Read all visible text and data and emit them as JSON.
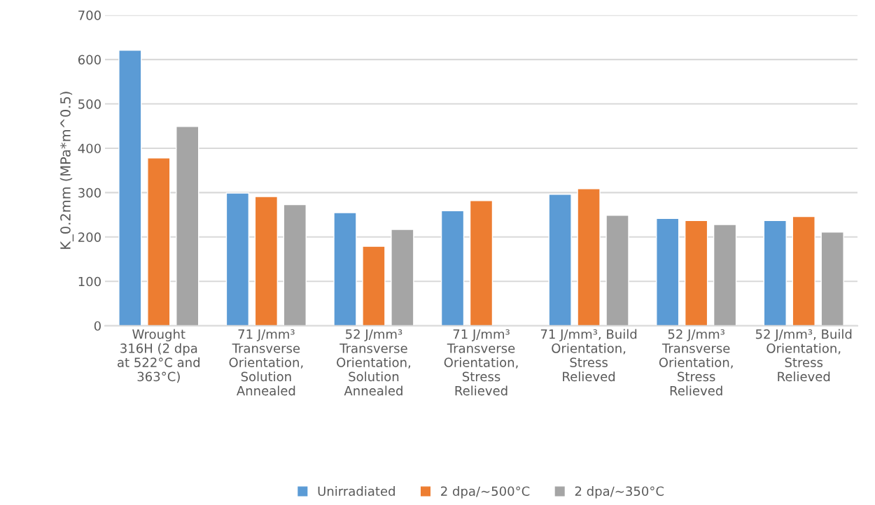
{
  "chart_data": {
    "type": "bar",
    "ylabel": "K_0.2mm (MPa*m^0.5)",
    "categories": [
      "Wrought\n316H (2 dpa\nat 522°C and\n363°C)",
      "71 J/mm³\nTransverse\nOrientation,\nSolution\nAnnealed",
      "52 J/mm³\nTransverse\nOrientation,\nSolution\nAnnealed",
      "71 J/mm³\nTransverse\nOrientation,\nStress\nRelieved",
      "71 J/mm³, Build\nOrientation,\nStress\nRelieved",
      "52 J/mm³\nTransverse\nOrientation,\nStress\nRelieved",
      "52 J/mm³, Build\nOrientation,\nStress\nRelieved"
    ],
    "series": [
      {
        "name": "Unirradiated",
        "color": "#5b9bd5",
        "values": [
          621,
          299,
          255,
          259,
          296,
          242,
          237
        ]
      },
      {
        "name": "2 dpa/~500°C",
        "color": "#ed7d31",
        "values": [
          378,
          291,
          179,
          282,
          309,
          237,
          246
        ]
      },
      {
        "name": "2 dpa/~350°C",
        "color": "#a5a5a5",
        "values": [
          449,
          273,
          217,
          null,
          249,
          228,
          211
        ]
      }
    ],
    "ylim": [
      0,
      700
    ],
    "yticks": [
      0,
      100,
      200,
      300,
      400,
      500,
      600,
      700
    ],
    "grid": "y",
    "legend": "bottom"
  }
}
